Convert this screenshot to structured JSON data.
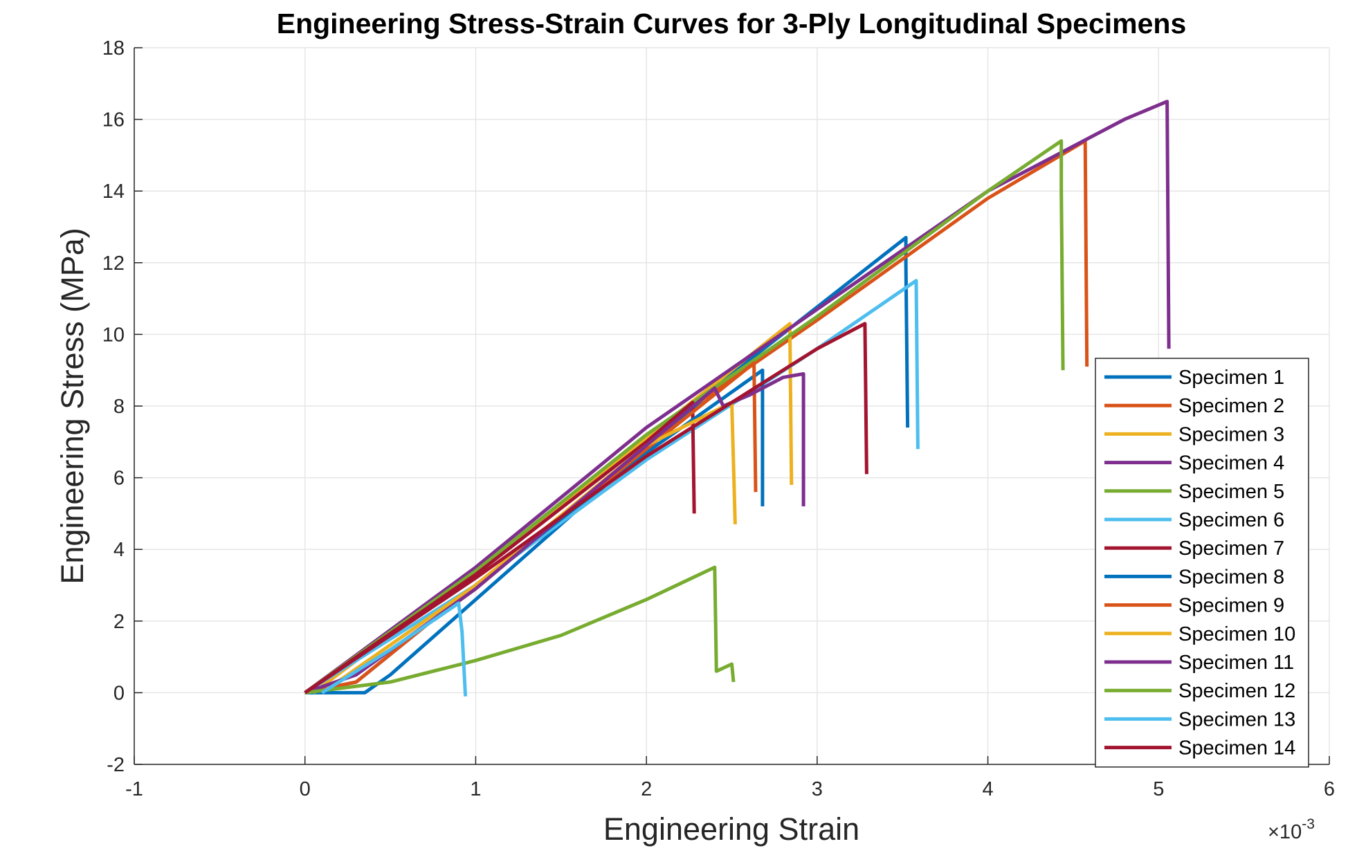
{
  "chart_data": {
    "type": "line",
    "title": "Engineering Stress-Strain Curves for 3-Ply Longitudinal Specimens",
    "xlabel": "Engineering Strain",
    "ylabel": "Engineering Stress (MPa)",
    "x_exponent_label": "×10",
    "x_exponent_power": "-3",
    "xlim": [
      -1,
      6
    ],
    "ylim": [
      -2,
      18
    ],
    "xticks": [
      "-1",
      "0",
      "1",
      "2",
      "3",
      "4",
      "5",
      "6"
    ],
    "yticks": [
      "-2",
      "0",
      "2",
      "4",
      "6",
      "8",
      "10",
      "12",
      "14",
      "16",
      "18"
    ],
    "grid": true,
    "legend_position": "bottom-right",
    "series": [
      {
        "name": "Specimen 1",
        "color": "#0072BD",
        "x": [
          0,
          0.35,
          0.5,
          1.5,
          2.5,
          3.52,
          3.52,
          3.53
        ],
        "y": [
          0,
          0,
          0.5,
          4.7,
          8.9,
          12.7,
          12.0,
          7.4
        ]
      },
      {
        "name": "Specimen 2",
        "color": "#D95319",
        "x": [
          0,
          1,
          2,
          3,
          4,
          4.57,
          4.58
        ],
        "y": [
          0,
          3.3,
          7.1,
          10.4,
          13.8,
          15.4,
          9.1
        ]
      },
      {
        "name": "Specimen 3",
        "color": "#EDB120",
        "x": [
          0.05,
          1,
          2,
          2.84,
          2.85
        ],
        "y": [
          0,
          3.4,
          7.1,
          10.3,
          5.8
        ]
      },
      {
        "name": "Specimen 4",
        "color": "#7E2F8E",
        "x": [
          0,
          1,
          2,
          3,
          4,
          4.8,
          5.05,
          5.06
        ],
        "y": [
          0,
          3.5,
          7.4,
          10.7,
          14,
          16,
          16.5,
          9.6
        ]
      },
      {
        "name": "Specimen 5",
        "color": "#77AC30",
        "x": [
          0,
          1,
          2,
          3,
          4,
          4.43,
          4.43,
          4.44
        ],
        "y": [
          0,
          3.4,
          7.2,
          10.5,
          14,
          15.4,
          14,
          9.0
        ]
      },
      {
        "name": "Specimen 6",
        "color": "#4DBEEE",
        "x": [
          0,
          1,
          2,
          3,
          3.58,
          3.59
        ],
        "y": [
          0,
          3,
          6.5,
          9.6,
          11.5,
          6.8
        ]
      },
      {
        "name": "Specimen 7",
        "color": "#A2142F",
        "x": [
          0,
          1,
          2,
          2.27,
          2.28
        ],
        "y": [
          0,
          3.3,
          7,
          8.1,
          5.0
        ]
      },
      {
        "name": "Specimen 8",
        "color": "#0072BD",
        "x": [
          0,
          0.3,
          1,
          2,
          2.65,
          2.68,
          2.68
        ],
        "y": [
          0,
          0.3,
          3,
          6.7,
          8.9,
          9.0,
          5.2
        ]
      },
      {
        "name": "Specimen 9",
        "color": "#D95319",
        "x": [
          0,
          0.3,
          1,
          2,
          2.63,
          2.64
        ],
        "y": [
          0,
          0.3,
          3,
          6.8,
          9.2,
          5.6
        ]
      },
      {
        "name": "Specimen 10",
        "color": "#EDB120",
        "x": [
          0.1,
          1,
          2,
          2.5,
          2.52
        ],
        "y": [
          0,
          3,
          6.9,
          8.1,
          4.7
        ]
      },
      {
        "name": "Specimen 11",
        "color": "#7E2F8E",
        "x": [
          0,
          0.3,
          1,
          2,
          2.4,
          2.45,
          2.6,
          2.8,
          2.92,
          2.92
        ],
        "y": [
          0,
          0.5,
          2.9,
          6.9,
          8.5,
          8.0,
          8.3,
          8.8,
          8.9,
          5.2
        ]
      },
      {
        "name": "Specimen 12",
        "color": "#77AC30",
        "x": [
          0,
          0.5,
          1,
          1.5,
          2,
          2.4,
          2.41,
          2.5,
          2.51
        ],
        "y": [
          0,
          0.3,
          0.9,
          1.6,
          2.6,
          3.5,
          0.6,
          0.8,
          0.3
        ]
      },
      {
        "name": "Specimen 13",
        "color": "#4DBEEE",
        "x": [
          0.1,
          0.5,
          0.9,
          0.92,
          0.94
        ],
        "y": [
          0,
          1.2,
          2.5,
          1.7,
          -0.1
        ]
      },
      {
        "name": "Specimen 14",
        "color": "#A2142F",
        "x": [
          0,
          1,
          2,
          3,
          3.28,
          3.29
        ],
        "y": [
          0,
          3.2,
          6.6,
          9.6,
          10.3,
          6.1
        ]
      }
    ]
  }
}
